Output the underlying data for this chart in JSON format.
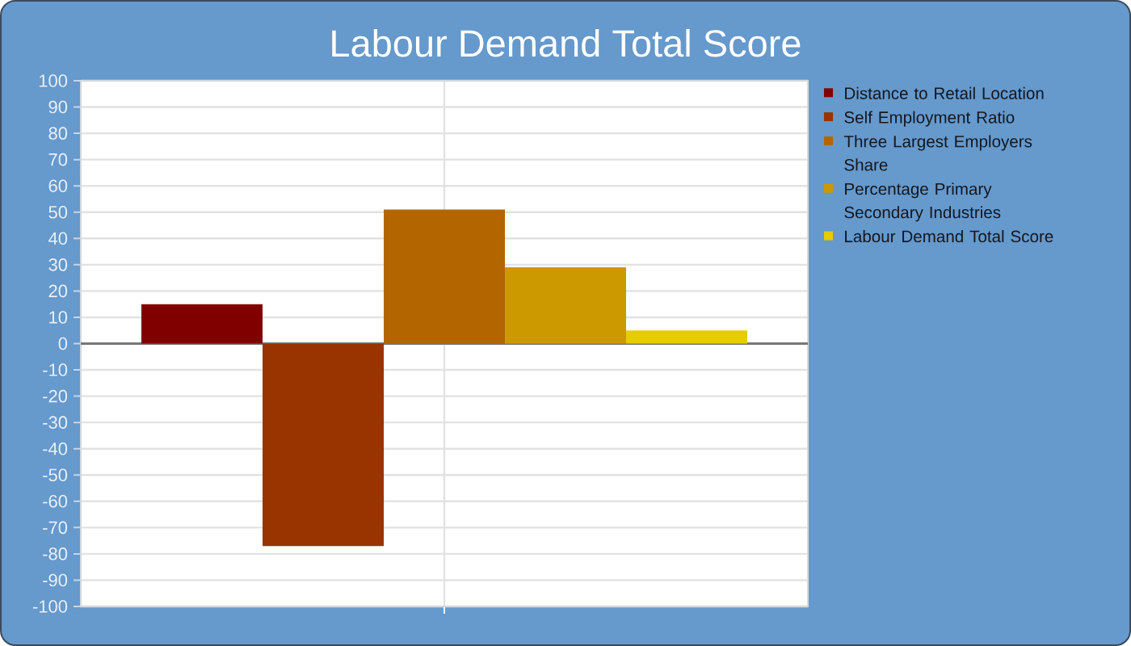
{
  "chart_data": {
    "type": "bar",
    "title": "Labour Demand Total Score",
    "categories": [
      null
    ],
    "series": [
      {
        "name": "Distance to Retail Location",
        "color": "#800000",
        "values": [
          15
        ]
      },
      {
        "name": "Self Employment Ratio",
        "color": "#993300",
        "values": [
          -77
        ]
      },
      {
        "name": "Three Largest Employers Share",
        "color": "#b36600",
        "values": [
          51
        ]
      },
      {
        "name": "Percentage Primary Secondary Industries",
        "color": "#cc9900",
        "values": [
          29
        ]
      },
      {
        "name": "Labour Demand Total Score",
        "color": "#e6cc00",
        "values": [
          5
        ]
      }
    ],
    "ylim": [
      -100,
      100
    ],
    "yticks": [
      -100,
      -90,
      -80,
      -70,
      -60,
      -50,
      -40,
      -30,
      -20,
      -10,
      0,
      10,
      20,
      30,
      40,
      50,
      60,
      70,
      80,
      90,
      100
    ],
    "grid": true,
    "legend": "top right"
  }
}
